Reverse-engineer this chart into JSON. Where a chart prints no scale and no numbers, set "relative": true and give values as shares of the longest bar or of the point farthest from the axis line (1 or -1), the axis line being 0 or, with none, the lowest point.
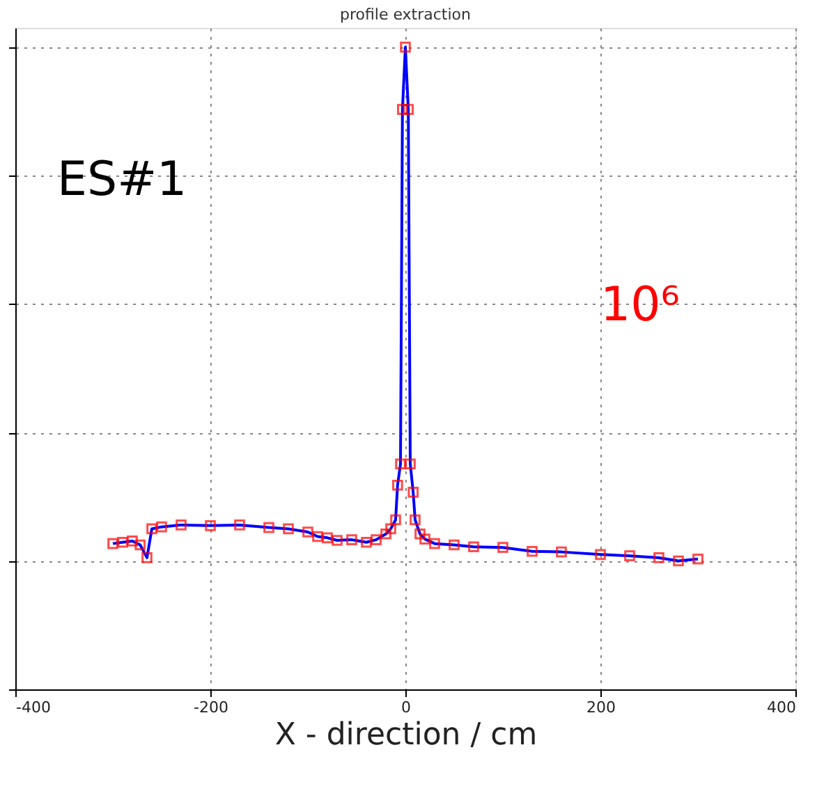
{
  "chart_data": {
    "type": "line",
    "title": "profile extraction",
    "xlabel": "X - direction / cm",
    "relative": true,
    "xlim": [
      -400,
      400
    ],
    "xticks": [
      {
        "value": -400,
        "label": "-400"
      },
      -200,
      0,
      200,
      400
    ],
    "grid": true,
    "marker": "square",
    "line_style": "solid",
    "annotations": [
      "ES#1",
      "10⁶"
    ],
    "series": [
      {
        "color": "#0000ff",
        "x": [
          -300,
          -290,
          -280,
          -272,
          -265,
          -260,
          -250,
          -230,
          -200,
          -170,
          -140,
          -120,
          -100,
          -90,
          -80,
          -70,
          -55,
          -40,
          -30,
          -20,
          -15,
          -10,
          -8,
          -5,
          -3,
          0,
          3,
          5,
          8,
          10,
          15,
          20,
          30,
          50,
          70,
          100,
          130,
          160,
          200,
          230,
          260,
          280,
          300
        ],
        "values": [
          0.227,
          0.229,
          0.231,
          0.225,
          0.205,
          0.25,
          0.253,
          0.256,
          0.255,
          0.256,
          0.252,
          0.25,
          0.245,
          0.238,
          0.236,
          0.232,
          0.233,
          0.229,
          0.233,
          0.242,
          0.25,
          0.264,
          0.318,
          0.351,
          0.903,
          1,
          0.903,
          0.351,
          0.307,
          0.264,
          0.242,
          0.234,
          0.227,
          0.225,
          0.222,
          0.221,
          0.215,
          0.214,
          0.21,
          0.208,
          0.205,
          0.2,
          0.203
        ]
      }
    ]
  }
}
